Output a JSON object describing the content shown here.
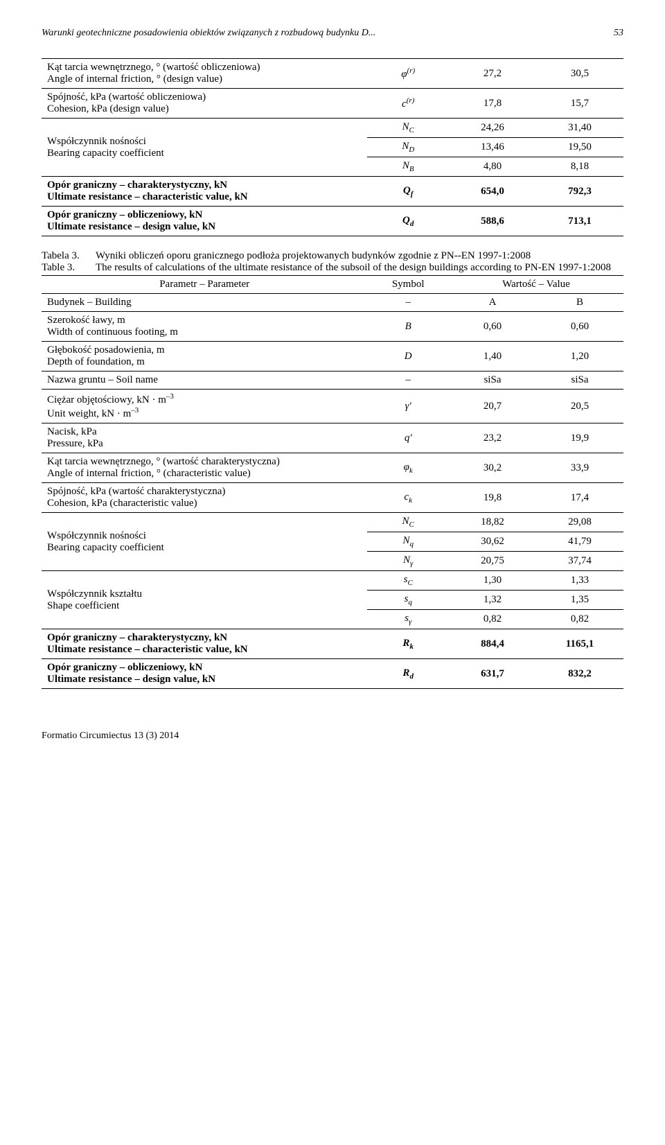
{
  "header": {
    "title": "Warunki geotechniczne posadowienia obiektów związanych z rozbudową budynku D...",
    "page": "53"
  },
  "table1": {
    "rows": [
      {
        "label_pl": "Kąt tarcia wewnętrznego, ° (wartość obliczeniowa)",
        "label_en": "Angle of internal friction, ° (design value)",
        "sym": "φ<sup>(r)</sup>",
        "v1": "27,2",
        "v2": "30,5"
      },
      {
        "label_pl": "Spójność, kPa (wartość obliczeniowa)",
        "label_en": "Cohesion, kPa (design value)",
        "sym": "c<sup>(r)</sup>",
        "v1": "17,8",
        "v2": "15,7"
      }
    ],
    "coef_label_pl": "Współczynnik nośności",
    "coef_label_en": "Bearing capacity coefficient",
    "coef_rows": [
      {
        "sym": "N<sub>C</sub>",
        "v1": "24,26",
        "v2": "31,40"
      },
      {
        "sym": "N<sub>D</sub>",
        "v1": "13,46",
        "v2": "19,50"
      },
      {
        "sym": "N<sub>B</sub>",
        "v1": "4,80",
        "v2": "8,18"
      }
    ],
    "bold_rows": [
      {
        "label_pl": "Opór graniczny – charakterystyczny, kN",
        "label_en": "Ultimate resistance – characteristic value, kN",
        "sym": "Q<sub>f</sub>",
        "v1": "654,0",
        "v2": "792,3"
      },
      {
        "label_pl": "Opór graniczny – obliczeniowy, kN",
        "label_en": "Ultimate resistance – design value, kN",
        "sym": "Q<sub>d</sub>",
        "v1": "588,6",
        "v2": "713,1"
      }
    ]
  },
  "caption": {
    "pl_label": "Tabela 3.",
    "pl_text": "Wyniki obliczeń oporu granicznego podłoża projektowanych budynków zgodnie z PN-­-EN 1997-1:2008",
    "en_label": "Table 3.",
    "en_text": "The results of calculations of the ultimate resistance of the subsoil of the design buildings according to PN-EN 1997-1:2008"
  },
  "table2": {
    "head": {
      "param": "Parametr – Parameter",
      "symbol": "Symbol",
      "value": "Wartość – Value"
    },
    "building": {
      "label": "Budynek – Building",
      "sym": "–",
      "v1": "A",
      "v2": "B"
    },
    "rows": [
      {
        "label_pl": "Szerokość ławy, m",
        "label_en": "Width of continuous footing, m",
        "sym": "<i>B</i>",
        "v1": "0,60",
        "v2": "0,60"
      },
      {
        "label_pl": "Głębokość posadowienia, m",
        "label_en": "Depth of foundation, m",
        "sym": "<i>D</i>",
        "v1": "1,40",
        "v2": "1,20"
      },
      {
        "label_pl": "Nazwa gruntu – Soil name",
        "label_en": "",
        "sym": "–",
        "v1": "siSa",
        "v2": "siSa"
      },
      {
        "label_pl": "Ciężar objętościowy, kN · m<sup>–3</sup>",
        "label_en": "Unit weight, kN · m<sup>–3</sup>",
        "sym": "γ<i>'</i>",
        "v1": "20,7",
        "v2": "20,5"
      },
      {
        "label_pl": "Nacisk, kPa",
        "label_en": "Pressure, kPa",
        "sym": "<i>q'</i>",
        "v1": "23,2",
        "v2": "19,9"
      },
      {
        "label_pl": "Kąt tarcia wewnętrznego, ° (wartość charakterystyczna)",
        "label_en": "Angle of internal friction, ° (characteristic value)",
        "sym": "φ<sub>k</sub>",
        "v1": "30,2",
        "v2": "33,9"
      },
      {
        "label_pl": "Spójność, kPa (wartość charakterystyczna)",
        "label_en": "Cohesion, kPa (characteristic value)",
        "sym": "c<sub>k</sub>",
        "v1": "19,8",
        "v2": "17,4"
      }
    ],
    "coef1_label_pl": "Współczynnik nośności",
    "coef1_label_en": "Bearing capacity coefficient",
    "coef1_rows": [
      {
        "sym": "N<sub>C</sub>",
        "v1": "18,82",
        "v2": "29,08"
      },
      {
        "sym": "N<sub>q</sub>",
        "v1": "30,62",
        "v2": "41,79"
      },
      {
        "sym": "N<sub>γ</sub>",
        "v1": "20,75",
        "v2": "37,74"
      }
    ],
    "coef2_label_pl": "Współczynnik kształtu",
    "coef2_label_en": "Shape coefficient",
    "coef2_rows": [
      {
        "sym": "s<sub>C</sub>",
        "v1": "1,30",
        "v2": "1,33"
      },
      {
        "sym": "s<sub>q</sub>",
        "v1": "1,32",
        "v2": "1,35"
      },
      {
        "sym": "s<sub>γ</sub>",
        "v1": "0,82",
        "v2": "0,82"
      }
    ],
    "bold_rows": [
      {
        "label_pl": "Opór graniczny – charakterystyczny, kN",
        "label_en": "Ultimate resistance – characteristic value, kN",
        "sym": "R<sub>k</sub>",
        "v1": "884,4",
        "v2": "1165,1"
      },
      {
        "label_pl": "Opór graniczny – obliczeniowy, kN",
        "label_en": "Ultimate resistance – design value, kN",
        "sym": "R<sub>d</sub>",
        "v1": "631,7",
        "v2": "832,2"
      }
    ]
  },
  "footer": "Formatio Circumiectus 13 (3) 2014",
  "col_widths": {
    "label": "56%",
    "sym": "14%",
    "v": "15%"
  }
}
